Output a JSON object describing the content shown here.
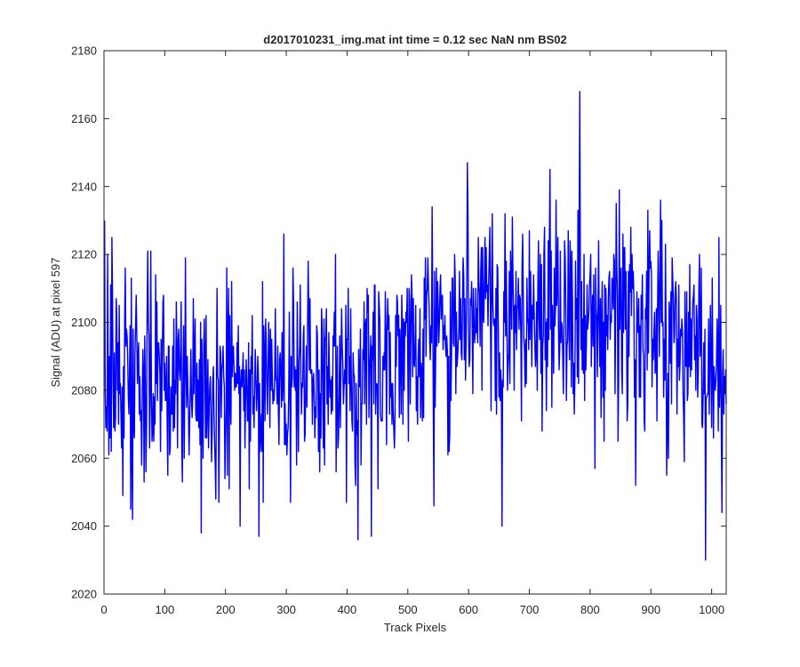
{
  "chart_data": {
    "type": "line",
    "title": "d2017010231_img.mat int time = 0.12 sec  NaN nm BS02",
    "xlabel": "Track Pixels",
    "ylabel": "Signal (ADU) at pixel 597",
    "xlim": [
      0,
      1024
    ],
    "ylim": [
      2020,
      2180
    ],
    "xticks": [
      0,
      100,
      200,
      300,
      400,
      500,
      600,
      700,
      800,
      900,
      1000
    ],
    "yticks": [
      2020,
      2040,
      2060,
      2080,
      2100,
      2120,
      2140,
      2160,
      2180
    ],
    "grid": false,
    "legend": "none",
    "series": [
      {
        "color": "#0000ff",
        "x_start": 1,
        "x_step": 1,
        "count": 1024,
        "seed": 2017,
        "noise_sd": 15.5,
        "trend": [
          [
            1,
            2086
          ],
          [
            250,
            2081
          ],
          [
            450,
            2085
          ],
          [
            560,
            2095
          ],
          [
            650,
            2101
          ],
          [
            760,
            2104
          ],
          [
            860,
            2098
          ],
          [
            1024,
            2090
          ]
        ],
        "notable_points": [
          [
            1,
            2130
          ],
          [
            6,
            2120
          ],
          [
            44,
            2045
          ],
          [
            47,
            2042
          ],
          [
            160,
            2038
          ],
          [
            255,
            2037
          ],
          [
            418,
            2036
          ],
          [
            440,
            2037
          ],
          [
            598,
            2147
          ],
          [
            655,
            2040
          ],
          [
            783,
            2168
          ],
          [
            875,
            2052
          ],
          [
            990,
            2030
          ],
          [
            1012,
            2125
          ],
          [
            1017,
            2044
          ]
        ]
      }
    ]
  }
}
